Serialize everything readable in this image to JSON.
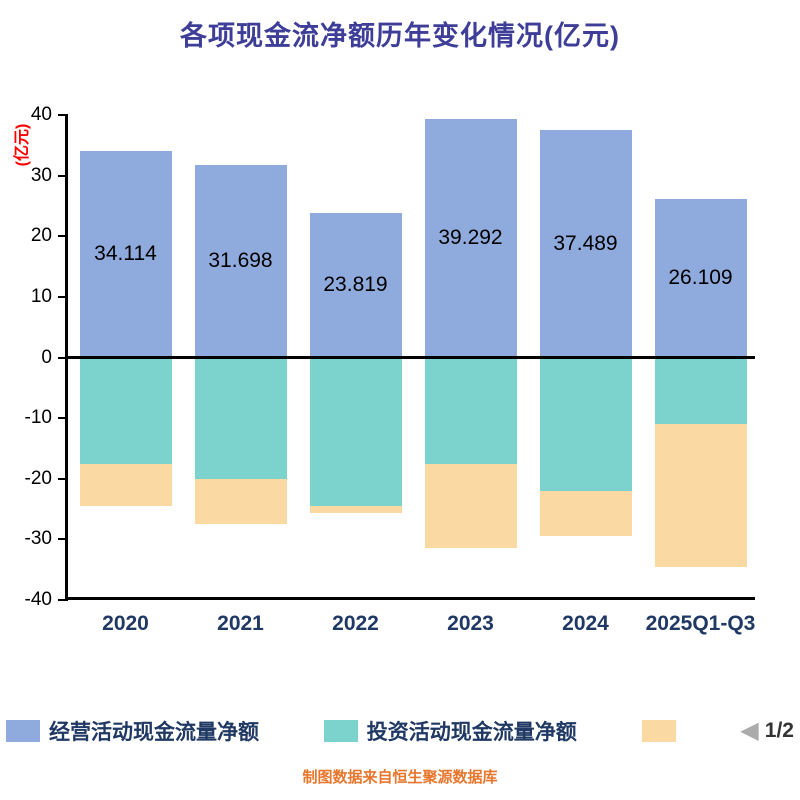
{
  "title": "各项现金流净额历年变化情况(亿元)",
  "y_axis_title": "(亿元)",
  "source_note": "制图数据来自恒生聚源数据库",
  "pagination": {
    "prev_icon": "left-triangle",
    "label": "1/2"
  },
  "legend": {
    "items": [
      {
        "label": "经营活动现金流量净额",
        "color": "#8FAADC"
      },
      {
        "label": "投资活动现金流量净额",
        "color": "#7CD2CC"
      },
      {
        "label": "",
        "color": "#FBD9A2"
      }
    ]
  },
  "colors": {
    "title": "#3E3E99",
    "axis": "#000000",
    "x_tick_label": "#1F3864",
    "y_tick_label": "#000000",
    "y_axis_title": "#FF0000",
    "bar_value_label": "#000000",
    "source": "#E8762C",
    "pager_arrow": "#ABABAB"
  },
  "chart_data": {
    "type": "bar",
    "stacked": true,
    "title": "各项现金流净额历年变化情况(亿元)",
    "xlabel": "",
    "ylabel": "(亿元)",
    "categories": [
      "2020",
      "2021",
      "2022",
      "2023",
      "2024",
      "2025Q1-Q3"
    ],
    "series": [
      {
        "name": "经营活动现金流量净额",
        "color": "#8FAADC",
        "values": [
          34.114,
          31.698,
          23.819,
          39.292,
          37.489,
          26.109
        ],
        "value_labels_shown": true
      },
      {
        "name": "投资活动现金流量净额",
        "color": "#7CD2CC",
        "values": [
          -17.5,
          -20.0,
          -24.5,
          -17.5,
          -22.0,
          -11.0
        ],
        "estimated": true
      },
      {
        "name": "",
        "color": "#FBD9A2",
        "values": [
          -7.0,
          -7.5,
          -1.2,
          -14.0,
          -7.5,
          -23.5
        ],
        "estimated": true
      }
    ],
    "ylim": [
      -40,
      40
    ],
    "ytick_step": 10,
    "grid": false,
    "legend_position": "bottom"
  }
}
